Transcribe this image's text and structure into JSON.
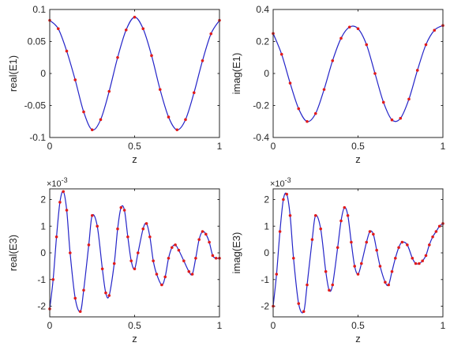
{
  "chart_data": [
    {
      "type": "scatter",
      "title": "",
      "xlabel": "z",
      "ylabel": "real(E1)",
      "xlim": [
        0,
        1
      ],
      "ylim": [
        -0.1,
        0.1
      ],
      "xticks": [
        "0",
        "0.5",
        "1"
      ],
      "yticks": [
        "-0.1",
        "-0.05",
        "0",
        "0.05",
        "0.1"
      ],
      "exponent_label": "",
      "series": [
        {
          "style": "line",
          "color": "#2424c8",
          "x": [
            0,
            0.05,
            0.1,
            0.15,
            0.2,
            0.25,
            0.3,
            0.35,
            0.4,
            0.45,
            0.5,
            0.55,
            0.6,
            0.65,
            0.7,
            0.75,
            0.8,
            0.85,
            0.9,
            0.95,
            1.0
          ],
          "y": [
            0.083,
            0.07,
            0.035,
            -0.01,
            -0.06,
            -0.088,
            -0.072,
            -0.028,
            0.025,
            0.068,
            0.088,
            0.07,
            0.028,
            -0.025,
            -0.068,
            -0.088,
            -0.072,
            -0.03,
            0.02,
            0.062,
            0.083
          ]
        },
        {
          "style": "points",
          "color": "#e11b1b",
          "x": [
            0,
            0.05,
            0.1,
            0.15,
            0.2,
            0.25,
            0.3,
            0.35,
            0.4,
            0.45,
            0.5,
            0.55,
            0.6,
            0.65,
            0.7,
            0.75,
            0.8,
            0.85,
            0.9,
            0.95,
            1.0
          ],
          "y": [
            0.083,
            0.07,
            0.035,
            -0.01,
            -0.06,
            -0.088,
            -0.072,
            -0.028,
            0.025,
            0.068,
            0.088,
            0.07,
            0.028,
            -0.025,
            -0.068,
            -0.088,
            -0.072,
            -0.03,
            0.02,
            0.062,
            0.083
          ]
        }
      ]
    },
    {
      "type": "scatter",
      "title": "",
      "xlabel": "z",
      "ylabel": "imag(E1)",
      "xlim": [
        0,
        1
      ],
      "ylim": [
        -0.4,
        0.4
      ],
      "xticks": [
        "0",
        "0.5",
        "1"
      ],
      "yticks": [
        "-0.4",
        "-0.2",
        "0",
        "0.2",
        "0.4"
      ],
      "exponent_label": "",
      "series": [
        {
          "style": "line",
          "color": "#2424c8",
          "x": [
            0,
            0.05,
            0.1,
            0.15,
            0.2,
            0.25,
            0.3,
            0.35,
            0.4,
            0.45,
            0.5,
            0.55,
            0.6,
            0.65,
            0.7,
            0.75,
            0.8,
            0.85,
            0.9,
            0.95,
            1.0
          ],
          "y": [
            0.25,
            0.12,
            -0.06,
            -0.22,
            -0.3,
            -0.25,
            -0.1,
            0.08,
            0.22,
            0.29,
            0.28,
            0.18,
            0.0,
            -0.18,
            -0.29,
            -0.28,
            -0.16,
            0.02,
            0.18,
            0.27,
            0.3
          ]
        },
        {
          "style": "points",
          "color": "#e11b1b",
          "x": [
            0,
            0.05,
            0.1,
            0.15,
            0.2,
            0.25,
            0.3,
            0.35,
            0.4,
            0.45,
            0.5,
            0.55,
            0.6,
            0.65,
            0.7,
            0.75,
            0.8,
            0.85,
            0.9,
            0.95,
            1.0
          ],
          "y": [
            0.25,
            0.12,
            -0.06,
            -0.22,
            -0.3,
            -0.25,
            -0.1,
            0.08,
            0.22,
            0.29,
            0.28,
            0.18,
            0.0,
            -0.18,
            -0.29,
            -0.28,
            -0.16,
            0.02,
            0.18,
            0.27,
            0.3
          ]
        }
      ]
    },
    {
      "type": "scatter",
      "title": "",
      "xlabel": "z",
      "ylabel": "real(E3)",
      "xlim": [
        0,
        1
      ],
      "ylim": [
        -2.4,
        2.4
      ],
      "xticks": [
        "0",
        "0.5",
        "1"
      ],
      "yticks": [
        "-2",
        "-1",
        "0",
        "1",
        "2"
      ],
      "exponent_label": "×10",
      "exponent_power": "-3",
      "series": [
        {
          "style": "line",
          "color": "#2424c8",
          "x": [
            0,
            0.02,
            0.04,
            0.06,
            0.08,
            0.1,
            0.12,
            0.15,
            0.18,
            0.2,
            0.23,
            0.25,
            0.28,
            0.31,
            0.33,
            0.35,
            0.38,
            0.4,
            0.42,
            0.44,
            0.46,
            0.48,
            0.5,
            0.52,
            0.55,
            0.57,
            0.59,
            0.61,
            0.63,
            0.66,
            0.68,
            0.7,
            0.72,
            0.74,
            0.76,
            0.79,
            0.82,
            0.84,
            0.86,
            0.88,
            0.9,
            0.92,
            0.94,
            0.96,
            0.98,
            1.0
          ],
          "y": [
            -2.1,
            -1.0,
            0.6,
            1.9,
            2.3,
            1.6,
            0.0,
            -1.7,
            -2.2,
            -1.4,
            0.3,
            1.4,
            1.0,
            -0.6,
            -1.5,
            -1.6,
            -0.4,
            0.9,
            1.7,
            1.6,
            0.6,
            -0.3,
            -0.6,
            0.0,
            0.9,
            1.1,
            0.6,
            -0.3,
            -0.8,
            -1.2,
            -0.9,
            -0.2,
            0.2,
            0.3,
            0.1,
            -0.3,
            -0.7,
            -0.8,
            -0.2,
            0.5,
            0.8,
            0.7,
            0.4,
            -0.1,
            -0.2,
            -0.2
          ]
        },
        {
          "style": "points",
          "color": "#e11b1b",
          "x": [
            0,
            0.02,
            0.04,
            0.06,
            0.08,
            0.1,
            0.12,
            0.15,
            0.18,
            0.2,
            0.23,
            0.25,
            0.28,
            0.31,
            0.33,
            0.35,
            0.38,
            0.4,
            0.42,
            0.44,
            0.46,
            0.48,
            0.5,
            0.52,
            0.55,
            0.57,
            0.59,
            0.61,
            0.63,
            0.66,
            0.68,
            0.7,
            0.72,
            0.74,
            0.76,
            0.79,
            0.82,
            0.84,
            0.86,
            0.88,
            0.9,
            0.92,
            0.94,
            0.96,
            0.98,
            1.0
          ],
          "y": [
            -2.1,
            -1.0,
            0.6,
            1.9,
            2.3,
            1.6,
            0.0,
            -1.7,
            -2.2,
            -1.4,
            0.3,
            1.4,
            1.0,
            -0.6,
            -1.5,
            -1.6,
            -0.4,
            0.9,
            1.7,
            1.6,
            0.6,
            -0.3,
            -0.6,
            0.0,
            0.9,
            1.1,
            0.6,
            -0.3,
            -0.8,
            -1.2,
            -0.9,
            -0.2,
            0.2,
            0.3,
            0.1,
            -0.3,
            -0.7,
            -0.8,
            -0.2,
            0.5,
            0.8,
            0.7,
            0.4,
            -0.1,
            -0.2,
            -0.2
          ]
        }
      ]
    },
    {
      "type": "scatter",
      "title": "",
      "xlabel": "z",
      "ylabel": "imag(E3)",
      "xlim": [
        0,
        1
      ],
      "ylim": [
        -2.4,
        2.4
      ],
      "xticks": [
        "0",
        "0.5",
        "1"
      ],
      "yticks": [
        "-2",
        "-1",
        "0",
        "1",
        "2"
      ],
      "exponent_label": "×10",
      "exponent_power": "-3",
      "series": [
        {
          "style": "line",
          "color": "#2424c8",
          "x": [
            0,
            0.02,
            0.04,
            0.06,
            0.08,
            0.1,
            0.12,
            0.15,
            0.18,
            0.2,
            0.23,
            0.25,
            0.28,
            0.31,
            0.33,
            0.35,
            0.38,
            0.4,
            0.42,
            0.44,
            0.46,
            0.48,
            0.5,
            0.52,
            0.55,
            0.57,
            0.59,
            0.61,
            0.63,
            0.66,
            0.68,
            0.7,
            0.72,
            0.74,
            0.76,
            0.79,
            0.82,
            0.84,
            0.86,
            0.88,
            0.9,
            0.92,
            0.94,
            0.96,
            0.98,
            1.0
          ],
          "y": [
            -2.0,
            -0.8,
            0.8,
            2.0,
            2.2,
            1.4,
            -0.2,
            -1.9,
            -2.2,
            -1.2,
            0.5,
            1.4,
            0.9,
            -0.7,
            -1.4,
            -1.2,
            0.2,
            1.2,
            1.7,
            1.4,
            0.4,
            -0.5,
            -0.8,
            -0.4,
            0.4,
            0.8,
            0.7,
            0.1,
            -0.5,
            -1.1,
            -1.2,
            -0.7,
            -0.2,
            0.2,
            0.4,
            0.3,
            -0.2,
            -0.4,
            -0.4,
            -0.3,
            -0.1,
            0.3,
            0.6,
            0.8,
            1.0,
            1.1
          ]
        },
        {
          "style": "points",
          "color": "#e11b1b",
          "x": [
            0,
            0.02,
            0.04,
            0.06,
            0.08,
            0.1,
            0.12,
            0.15,
            0.18,
            0.2,
            0.23,
            0.25,
            0.28,
            0.31,
            0.33,
            0.35,
            0.38,
            0.4,
            0.42,
            0.44,
            0.46,
            0.48,
            0.5,
            0.52,
            0.55,
            0.57,
            0.59,
            0.61,
            0.63,
            0.66,
            0.68,
            0.7,
            0.72,
            0.74,
            0.76,
            0.79,
            0.82,
            0.84,
            0.86,
            0.88,
            0.9,
            0.92,
            0.94,
            0.96,
            0.98,
            1.0
          ],
          "y": [
            -2.0,
            -0.8,
            0.8,
            2.0,
            2.2,
            1.4,
            -0.2,
            -1.9,
            -2.2,
            -1.2,
            0.5,
            1.4,
            0.9,
            -0.7,
            -1.4,
            -1.2,
            0.2,
            1.2,
            1.7,
            1.4,
            0.4,
            -0.5,
            -0.8,
            -0.4,
            0.4,
            0.8,
            0.7,
            0.1,
            -0.5,
            -1.1,
            -1.2,
            -0.7,
            -0.2,
            0.2,
            0.4,
            0.3,
            -0.2,
            -0.4,
            -0.4,
            -0.3,
            -0.1,
            0.3,
            0.6,
            0.8,
            1.0,
            1.1
          ]
        }
      ]
    }
  ]
}
